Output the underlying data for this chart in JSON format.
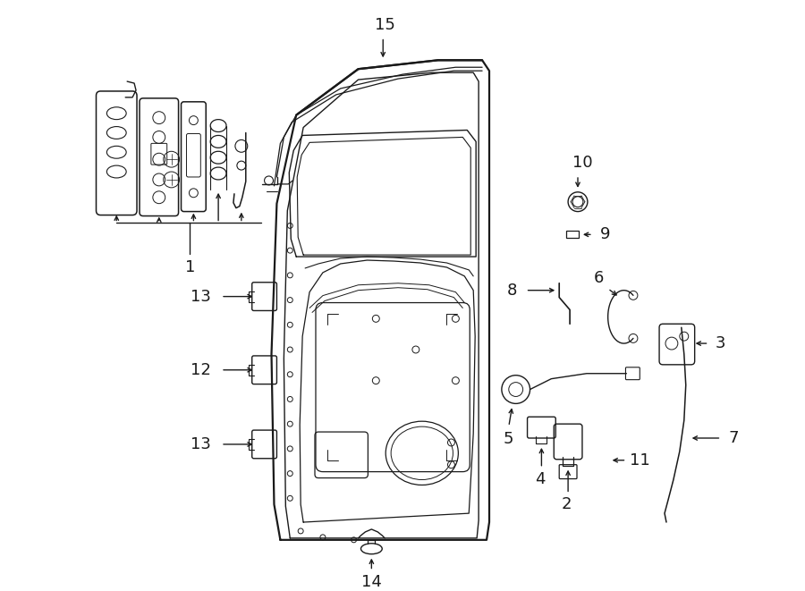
{
  "background_color": "#ffffff",
  "line_color": "#1a1a1a",
  "figsize": [
    9.0,
    6.61
  ],
  "dpi": 100,
  "label_fontsize": 13,
  "arrow_lw": 1.0,
  "comp_lw": 1.1,
  "door_lw": 1.6
}
